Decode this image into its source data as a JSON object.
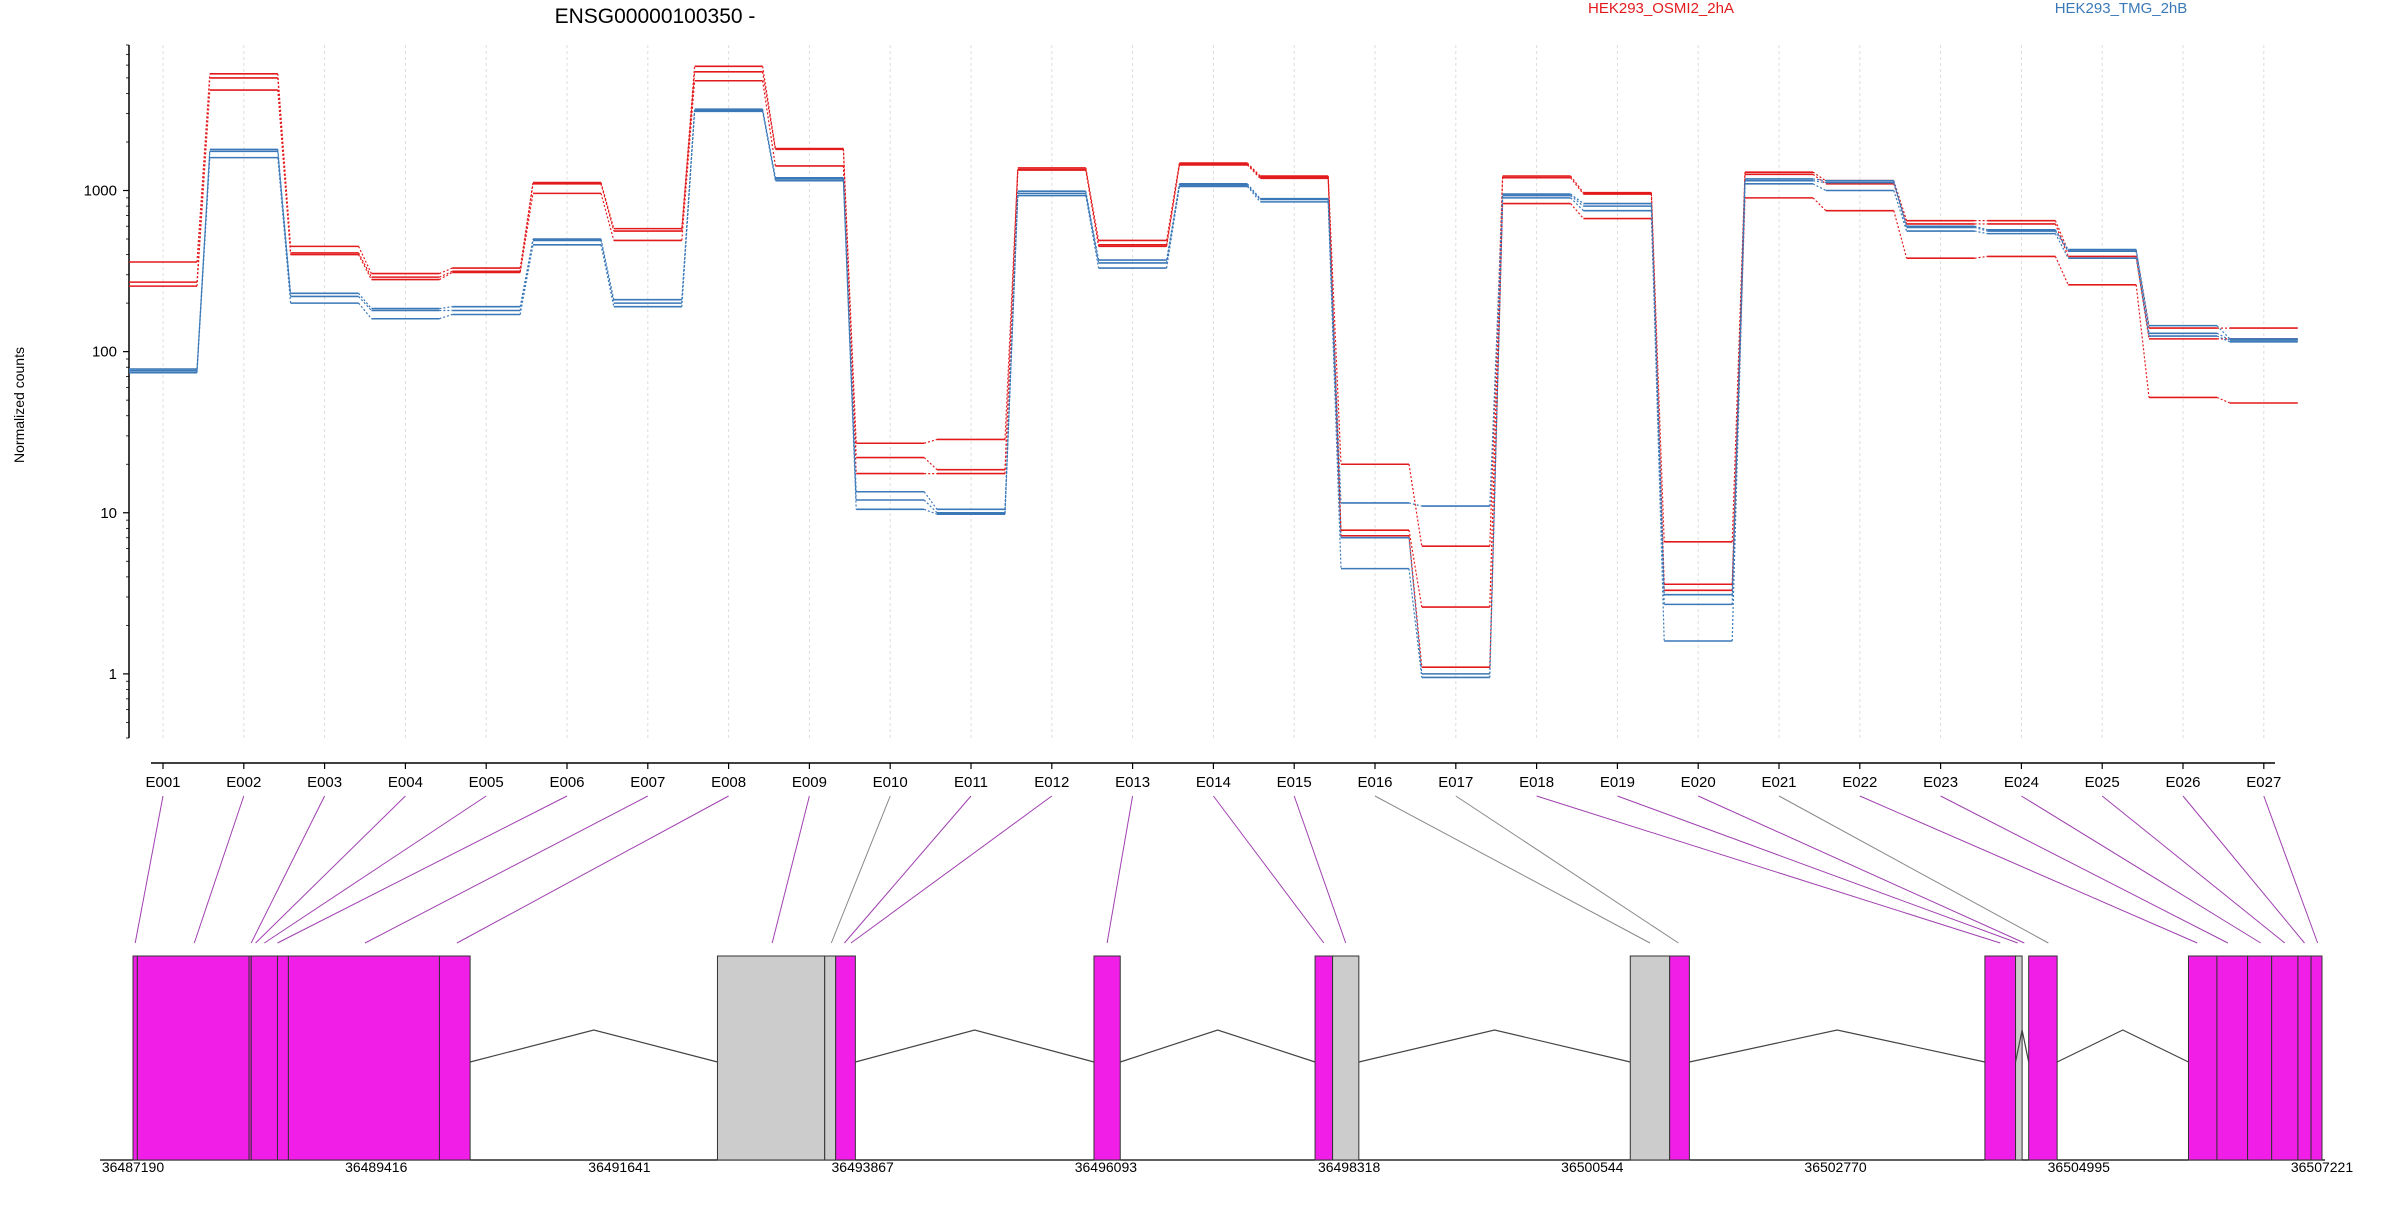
{
  "chart_data": {
    "type": "line",
    "title": "ENSG00000100350 -",
    "ylabel": "Normalized counts",
    "yscale": "log",
    "ylim": [
      0.4,
      8000
    ],
    "yticks": [
      1,
      10,
      100,
      1000
    ],
    "ytick_labels": [
      "1",
      "10",
      "100",
      "1000"
    ],
    "grid": "vertical dashed",
    "legend_placement": "top",
    "categories": [
      "E001",
      "E002",
      "E003",
      "E004",
      "E005",
      "E006",
      "E007",
      "E008",
      "E009",
      "E010",
      "E011",
      "E012",
      "E013",
      "E014",
      "E015",
      "E016",
      "E017",
      "E018",
      "E019",
      "E020",
      "E021",
      "E022",
      "E023",
      "E024",
      "E025",
      "E026",
      "E027"
    ],
    "series": [
      {
        "name": "HEK293_OSMI2_2hA",
        "color": "#e31a1c",
        "values": [
          360,
          5300,
          450,
          305,
          330,
          1120,
          580,
          5900,
          1820,
          27,
          28.5,
          1380,
          490,
          1480,
          1230,
          20,
          6.2,
          1230,
          970,
          6.6,
          1300,
          1150,
          650,
          650,
          420,
          140,
          140
        ]
      },
      {
        "color": "#e31a1c",
        "values": [
          270,
          5000,
          410,
          290,
          315,
          1100,
          560,
          5450,
          1800,
          22,
          18.5,
          1350,
          460,
          1460,
          1210,
          7.8,
          2.6,
          1200,
          950,
          3.6,
          1260,
          1100,
          620,
          620,
          390,
          120,
          120
        ]
      },
      {
        "color": "#e31a1c",
        "values": [
          255,
          4200,
          400,
          280,
          310,
          960,
          490,
          4800,
          1420,
          17.5,
          17.5,
          1340,
          450,
          1440,
          1190,
          7.2,
          1.1,
          830,
          670,
          3.3,
          900,
          750,
          380,
          390,
          260,
          52,
          48
        ]
      },
      {
        "name": "HEK293_TMG_2hB",
        "color": "#3a78b8",
        "values": [
          78,
          1800,
          230,
          185,
          190,
          500,
          210,
          3200,
          1200,
          13.5,
          10.5,
          990,
          370,
          1100,
          890,
          11.5,
          11,
          950,
          830,
          3.1,
          1180,
          1150,
          600,
          570,
          430,
          145,
          120
        ]
      },
      {
        "color": "#3a78b8",
        "values": [
          76,
          1750,
          220,
          180,
          180,
          490,
          200,
          3150,
          1180,
          12,
          10,
          960,
          355,
          1080,
          880,
          7,
          1,
          930,
          800,
          2.7,
          1150,
          1120,
          590,
          560,
          420,
          130,
          118
        ]
      },
      {
        "color": "#3a78b8",
        "values": [
          74,
          1600,
          200,
          160,
          170,
          460,
          190,
          3100,
          1150,
          10.5,
          9.8,
          930,
          330,
          1060,
          850,
          4.5,
          0.95,
          900,
          750,
          1.6,
          1100,
          1000,
          560,
          540,
          380,
          125,
          115
        ]
      }
    ],
    "gene_model": {
      "x_ticks": [
        "36487190",
        "36489416",
        "36491641",
        "36493867",
        "36496093",
        "36498318",
        "36500544",
        "36502770",
        "36504995",
        "36507221"
      ],
      "colors": {
        "counted_exon": "#f01ee6",
        "excluded_exon": "#cccccc",
        "mapping_line_counted": "#a040b0",
        "mapping_line_excluded": "#888888"
      }
    }
  }
}
